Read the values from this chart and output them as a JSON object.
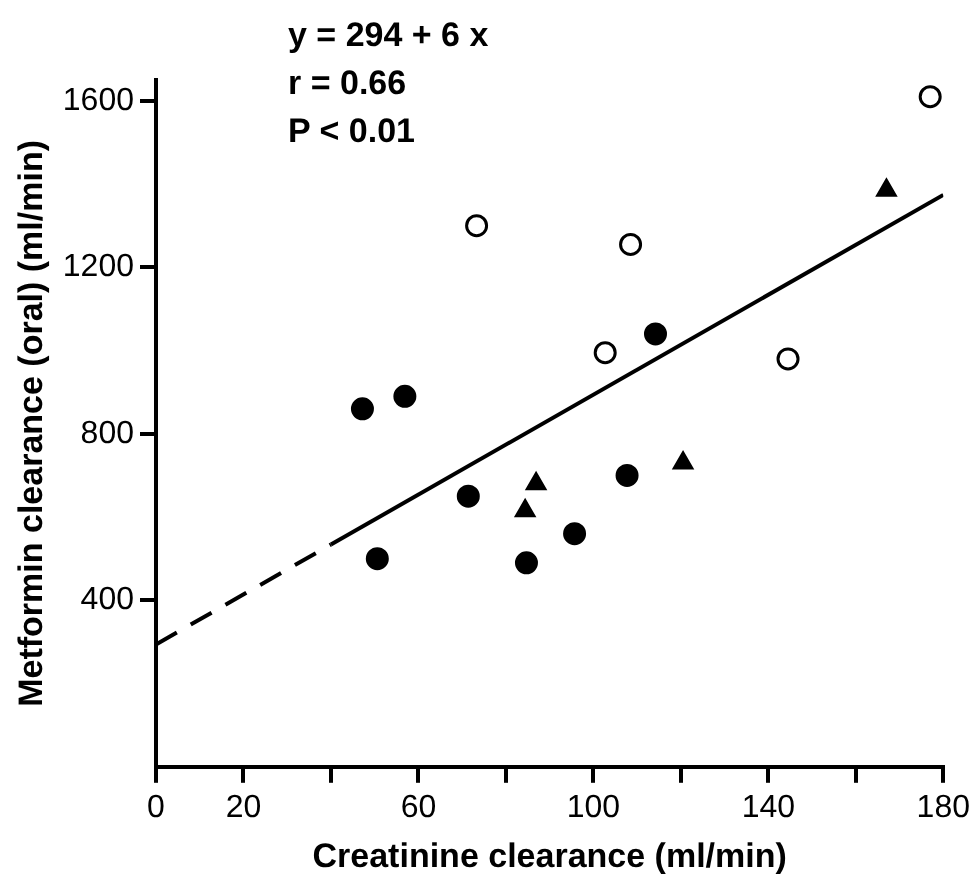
{
  "chart_data": {
    "type": "scatter",
    "xlabel": "Creatinine clearance (ml/min)",
    "ylabel": "Metformin clearance (oral) (ml/min)",
    "annotations": [
      "y = 294 + 6 x",
      "r = 0.66",
      "P < 0.01"
    ],
    "xlim": [
      0,
      180
    ],
    "xticks": [
      0,
      20,
      {
        "value": 40,
        "label": null
      },
      60,
      {
        "value": 80,
        "label": null
      },
      100,
      {
        "value": 120,
        "label": null
      },
      140,
      {
        "value": 160,
        "label": null
      },
      180
    ],
    "ylim": [
      0,
      1650
    ],
    "yticks": [
      400,
      800,
      1200,
      1600
    ],
    "grid": false,
    "legend": false,
    "series": [
      {
        "type": "scatter",
        "marker": "circle",
        "color": "#000000",
        "x": [
          114.2,
          47.2,
          56.9,
          50.6,
          71.4,
          84.7,
          95.7,
          107.7
        ],
        "values": [
          1040,
          860,
          890,
          500,
          650,
          490,
          560,
          700
        ]
      },
      {
        "type": "scatter",
        "marker": "circle",
        "color": "#ffffff",
        "x": [
          177,
          73.3,
          108.5,
          102.7,
          144.5
        ],
        "values": [
          1610,
          1300,
          1255,
          995,
          980
        ]
      },
      {
        "type": "scatter",
        "marker": "triangle",
        "color": "#000000",
        "x": [
          167,
          86.9,
          84.4,
          120.5
        ],
        "values": [
          1385,
          680,
          615,
          730
        ]
      },
      {
        "type": "line",
        "marker": "none",
        "line_style": "solid",
        "color": "#000000",
        "x": [
          40,
          180
        ],
        "values": [
          534,
          1374
        ]
      },
      {
        "type": "line",
        "marker": "none",
        "line_style": "dashed",
        "color": "#000000",
        "x": [
          0,
          40
        ],
        "values": [
          294,
          534
        ]
      }
    ]
  }
}
